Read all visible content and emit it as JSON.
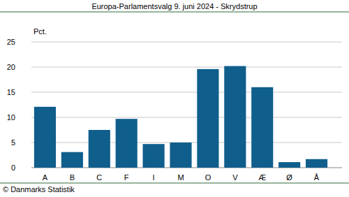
{
  "chart_data": {
    "type": "bar",
    "title": "Europa-Parlamentsvalg 9. juni 2024 - Skrydstrup",
    "y_label": "Pct.",
    "source": "© Danmarks Statistik",
    "categories": [
      "A",
      "B",
      "C",
      "F",
      "I",
      "M",
      "O",
      "V",
      "Æ",
      "Ø",
      "Å"
    ],
    "values": [
      12.1,
      3.1,
      7.5,
      9.7,
      4.7,
      5.0,
      19.6,
      20.2,
      16.0,
      1.1,
      1.7
    ],
    "color": "#0f5e8c",
    "ylim": [
      0,
      25
    ],
    "yticks": [
      0,
      5,
      10,
      15,
      20,
      25
    ],
    "grid": true
  }
}
